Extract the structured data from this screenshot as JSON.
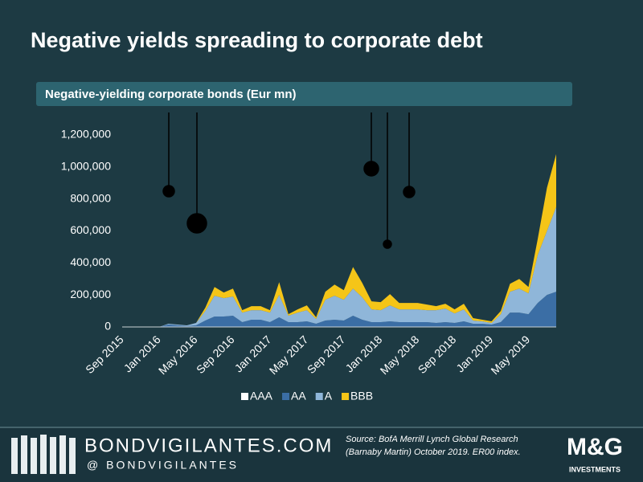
{
  "chart_data": {
    "type": "stacked-area",
    "title": "Negative yields spreading to corporate debt",
    "subtitle": "Negative-yielding corporate bonds (Eur mn)",
    "categories": [
      "Sep 2015",
      null,
      null,
      null,
      "Jan 2016",
      null,
      null,
      null,
      "May 2016",
      null,
      null,
      null,
      "Sep 2016",
      null,
      null,
      null,
      "Jan 2017",
      null,
      null,
      null,
      "May 2017",
      null,
      null,
      null,
      "Sep 2017",
      null,
      null,
      null,
      "Jan 2018",
      null,
      null,
      null,
      "May 2018",
      null,
      null,
      null,
      "Sep 2018",
      null,
      null,
      null,
      "Jan 2019",
      null,
      null,
      null,
      "May 2019",
      null,
      null,
      null
    ],
    "series": [
      {
        "name": "AAA",
        "color": "#ffffff",
        "values": [
          0,
          0,
          0,
          0,
          0,
          0,
          0,
          0,
          0,
          0,
          0,
          0,
          0,
          0,
          0,
          0,
          0,
          0,
          0,
          0,
          0,
          0,
          0,
          0,
          0,
          0,
          0,
          0,
          0,
          0,
          0,
          0,
          0,
          0,
          0,
          0,
          0,
          0,
          0,
          0,
          0,
          0,
          0,
          0,
          0,
          0,
          0,
          0
        ]
      },
      {
        "name": "AA",
        "color": "#3b6ea5",
        "values": [
          0,
          0,
          0,
          0,
          0,
          15000,
          10000,
          5000,
          10000,
          40000,
          65000,
          65000,
          70000,
          30000,
          45000,
          45000,
          30000,
          60000,
          30000,
          30000,
          35000,
          20000,
          40000,
          45000,
          40000,
          70000,
          45000,
          30000,
          30000,
          35000,
          30000,
          30000,
          30000,
          30000,
          25000,
          30000,
          25000,
          35000,
          20000,
          20000,
          15000,
          30000,
          90000,
          90000,
          80000,
          150000,
          200000,
          220000
        ]
      },
      {
        "name": "A",
        "color": "#8fb6d9",
        "values": [
          0,
          0,
          0,
          0,
          0,
          5000,
          5000,
          5000,
          15000,
          60000,
          130000,
          115000,
          120000,
          60000,
          60000,
          60000,
          60000,
          140000,
          40000,
          60000,
          70000,
          30000,
          130000,
          150000,
          130000,
          170000,
          140000,
          80000,
          75000,
          100000,
          80000,
          80000,
          80000,
          75000,
          80000,
          85000,
          60000,
          75000,
          20000,
          15000,
          10000,
          50000,
          130000,
          150000,
          130000,
          300000,
          400000,
          530000
        ]
      },
      {
        "name": "BBB",
        "color": "#f5c518",
        "values": [
          0,
          0,
          0,
          0,
          0,
          0,
          0,
          0,
          0,
          20000,
          55000,
          35000,
          50000,
          15000,
          25000,
          25000,
          15000,
          80000,
          10000,
          20000,
          30000,
          10000,
          50000,
          70000,
          60000,
          135000,
          90000,
          50000,
          50000,
          70000,
          40000,
          40000,
          40000,
          35000,
          25000,
          30000,
          25000,
          35000,
          15000,
          10000,
          10000,
          20000,
          50000,
          60000,
          40000,
          100000,
          270000,
          330000
        ]
      }
    ],
    "ylim": [
      0,
      1200000
    ],
    "yticks": [
      0,
      {
        "value": 200000,
        "label": "200,000"
      },
      {
        "value": 400000,
        "label": "400,000"
      },
      {
        "value": 600000,
        "label": "600,000"
      },
      {
        "value": 800000,
        "label": "800,000"
      },
      {
        "value": 1000000,
        "label": "1,000,000"
      },
      {
        "value": 1200000,
        "label": "1,200,000"
      }
    ],
    "grid": false
  },
  "footer": {
    "site": "BONDVIGILANTES.COM",
    "handle": "@ BONDVIGILANTES",
    "source": [
      "Source: BofA Merrill Lynch Global Research",
      "(Barnaby Martin) October 2019. ER00 index."
    ],
    "logo": "M&G",
    "logo_sub": "INVESTMENTS"
  }
}
